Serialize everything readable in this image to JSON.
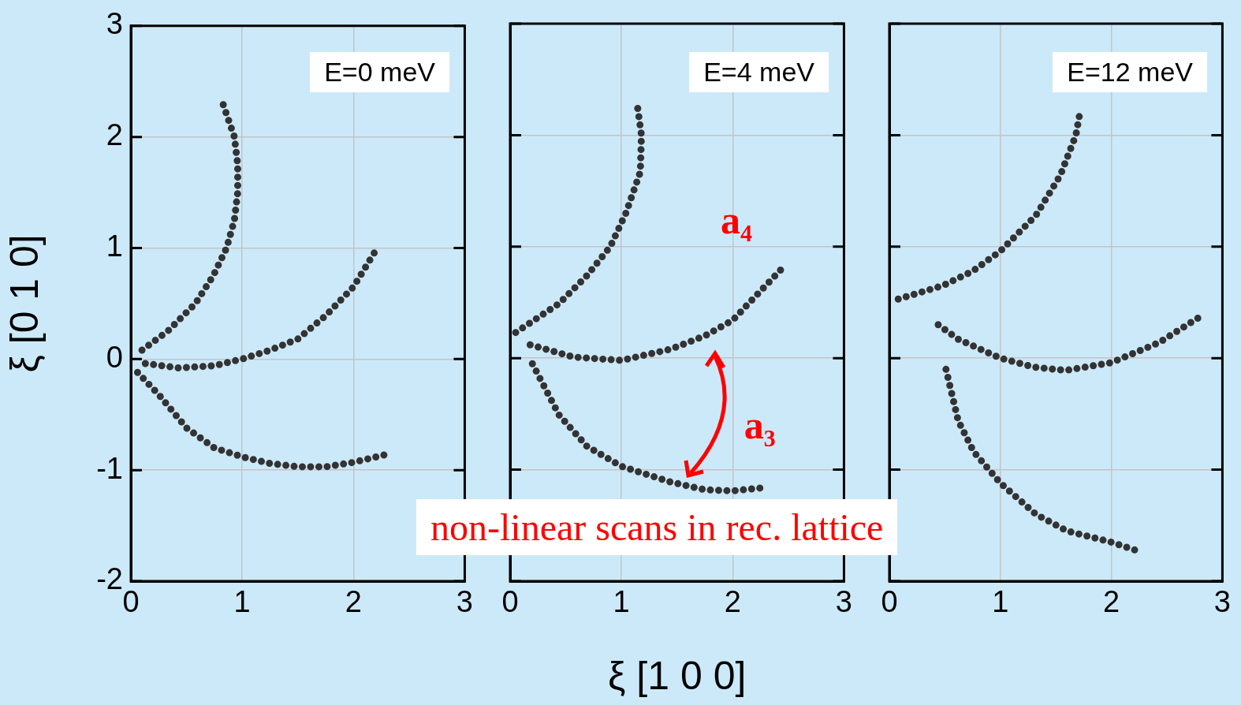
{
  "chart_data": [
    {
      "type": "line",
      "ylabel": "ξ [0 1 0]",
      "annotations": [
        "E=0 meV"
      ],
      "xlim": [
        0,
        3
      ],
      "xticks": [
        0,
        1,
        2,
        3
      ],
      "ylim": [
        -2,
        3
      ],
      "yticks": [
        -2,
        -1,
        0,
        1,
        2,
        3
      ],
      "grid": true,
      "legend": false,
      "line_style": "dotted",
      "series": [
        {
          "color": "#333333",
          "x": [
            0.1,
            0.33,
            0.58,
            0.74,
            0.86,
            0.93,
            0.96,
            0.96,
            0.93,
            0.83
          ],
          "values": [
            0.08,
            0.25,
            0.5,
            0.75,
            1.0,
            1.25,
            1.5,
            1.75,
            2.0,
            2.29
          ]
        },
        {
          "color": "#333333",
          "x": [
            0.13,
            0.43,
            0.75,
            1.0,
            1.25,
            1.5,
            1.75,
            2.0,
            2.22
          ],
          "values": [
            -0.04,
            -0.08,
            -0.06,
            0.0,
            0.08,
            0.18,
            0.39,
            0.65,
            1.01
          ]
        },
        {
          "color": "#333333",
          "x": [
            0.06,
            0.25,
            0.5,
            0.75,
            1.0,
            1.25,
            1.5,
            1.75,
            2.0,
            2.29
          ],
          "values": [
            -0.12,
            -0.32,
            -0.62,
            -0.8,
            -0.88,
            -0.94,
            -0.97,
            -0.97,
            -0.93,
            -0.86
          ]
        }
      ]
    },
    {
      "type": "line",
      "xlabel": "ξ [1 0 0]",
      "annotations": [
        "E=4 meV",
        "a₄",
        "a₃",
        "non-linear scans in rec. lattice"
      ],
      "xlim": [
        0,
        3
      ],
      "xticks": [
        0,
        1,
        2,
        3
      ],
      "ylim": [
        -2,
        3
      ],
      "yticks": [
        -2,
        -1,
        0,
        1,
        2,
        3
      ],
      "tick_labels": "x",
      "grid": true,
      "legend": false,
      "line_style": "dotted",
      "series": [
        {
          "color": "#333333",
          "x": [
            0.05,
            0.44,
            0.69,
            0.9,
            1.04,
            1.17,
            1.18,
            1.14
          ],
          "values": [
            0.23,
            0.49,
            0.74,
            1.0,
            1.3,
            1.67,
            2.0,
            2.29
          ]
        },
        {
          "color": "#333333",
          "x": [
            0.18,
            0.57,
            1.0,
            1.44,
            1.75,
            2.0,
            2.2,
            2.43
          ],
          "values": [
            0.12,
            0.01,
            -0.02,
            0.08,
            0.2,
            0.34,
            0.55,
            0.79
          ]
        },
        {
          "color": "#333333",
          "x": [
            0.2,
            0.44,
            0.69,
            1.0,
            1.44,
            1.75,
            2.0,
            2.29
          ],
          "values": [
            -0.05,
            -0.51,
            -0.79,
            -0.97,
            -1.11,
            -1.18,
            -1.19,
            -1.16
          ]
        }
      ]
    },
    {
      "type": "line",
      "annotations": [
        "E=12 meV"
      ],
      "xlim": [
        0,
        3
      ],
      "xticks": [
        0,
        1,
        2,
        3
      ],
      "ylim": [
        -2,
        3
      ],
      "yticks": [
        -2,
        -1,
        0,
        1,
        2,
        3
      ],
      "tick_labels": "x",
      "grid": true,
      "legend": false,
      "line_style": "dotted",
      "series": [
        {
          "color": "#333333",
          "x": [
            0.08,
            0.48,
            0.75,
            1.0,
            1.32,
            1.54,
            1.68,
            1.72
          ],
          "values": [
            0.53,
            0.65,
            0.78,
            0.96,
            1.28,
            1.64,
            2.0,
            2.22
          ]
        },
        {
          "color": "#333333",
          "x": [
            0.44,
            0.62,
            1.0,
            1.3,
            1.59,
            2.0,
            2.43,
            2.78
          ],
          "values": [
            0.3,
            0.17,
            0.0,
            -0.08,
            -0.11,
            -0.04,
            0.14,
            0.36
          ]
        },
        {
          "color": "#333333",
          "x": [
            0.51,
            0.62,
            0.76,
            1.0,
            1.32,
            1.6,
            2.0,
            2.21
          ],
          "values": [
            -0.1,
            -0.56,
            -0.84,
            -1.12,
            -1.4,
            -1.55,
            -1.65,
            -1.72
          ]
        }
      ]
    }
  ]
}
